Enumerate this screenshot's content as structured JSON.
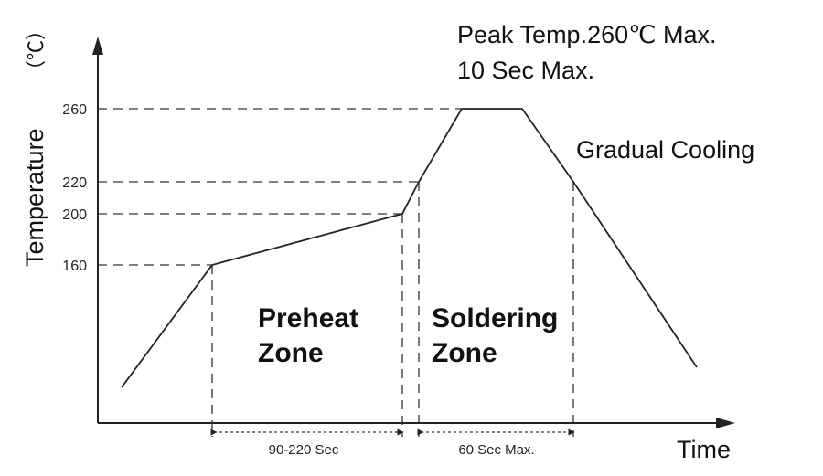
{
  "axes": {
    "y_title": "Temperature",
    "y_unit": "（℃）",
    "x_title": "Time",
    "y_ticks": [
      "260",
      "220",
      "200",
      "160"
    ]
  },
  "annotations": {
    "peak_line1": "Peak Temp.260℃ Max.",
    "peak_line2": "10 Sec Max.",
    "cooling": "Gradual Cooling",
    "preheat_line1": "Preheat",
    "preheat_line2": "Zone",
    "soldering_line1": "Soldering",
    "soldering_line2": "Zone"
  },
  "dimensions": {
    "preheat_time": "90-220 Sec",
    "soldering_time": "60 Sec Max."
  }
}
